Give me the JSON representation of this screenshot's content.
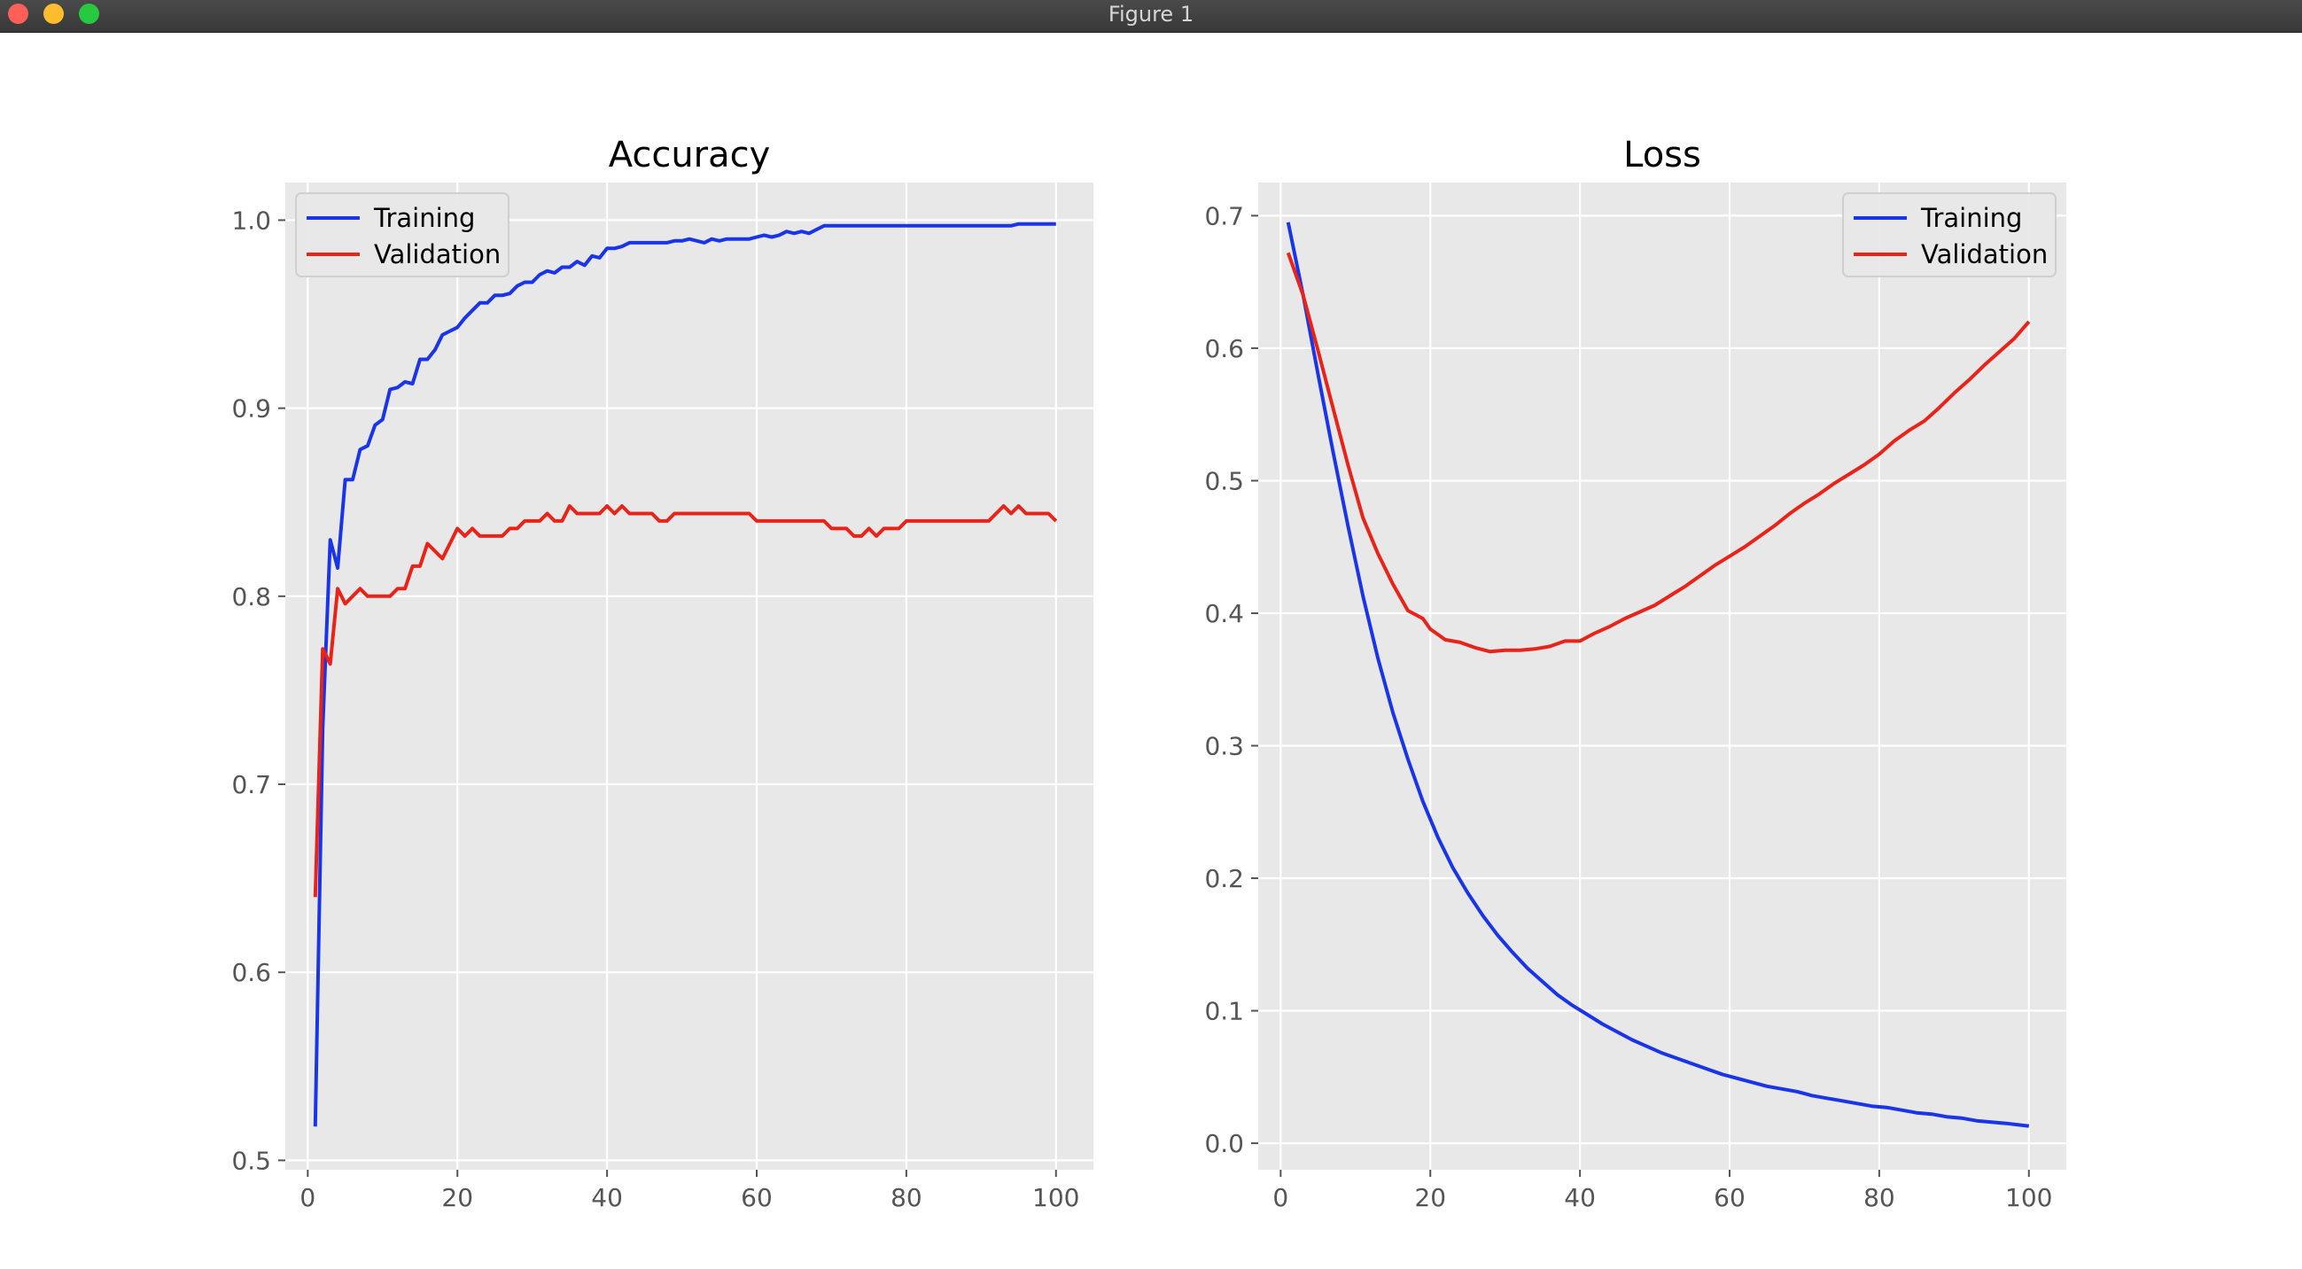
{
  "window": {
    "title": "Figure 1",
    "buttons": [
      "close",
      "minimize",
      "maximize"
    ]
  },
  "style": {
    "axes_background": "#e8e8e8",
    "grid_color": "#ffffff",
    "training_color": "#1a35e8",
    "validation_color": "#e8231a"
  },
  "chart_data": [
    {
      "type": "line",
      "title": "Accuracy",
      "xlabel": "",
      "ylabel": "",
      "xlim": [
        -3,
        105
      ],
      "ylim": [
        0.495,
        1.02
      ],
      "xticks": [
        0,
        20,
        40,
        60,
        80,
        100
      ],
      "yticks": [
        0.5,
        0.6,
        0.7,
        0.8,
        0.9,
        1.0
      ],
      "grid": true,
      "legend": "upper left",
      "series": [
        {
          "name": "Training",
          "color": "#1a35e8",
          "x": [
            1,
            2,
            3,
            4,
            5,
            6,
            7,
            8,
            9,
            10,
            11,
            12,
            13,
            14,
            15,
            16,
            17,
            18,
            19,
            20,
            21,
            22,
            23,
            24,
            25,
            26,
            27,
            28,
            29,
            30,
            31,
            32,
            33,
            34,
            35,
            36,
            37,
            38,
            39,
            40,
            41,
            42,
            43,
            44,
            45,
            46,
            47,
            48,
            49,
            50,
            51,
            52,
            53,
            54,
            55,
            56,
            57,
            58,
            59,
            60,
            61,
            62,
            63,
            64,
            65,
            66,
            67,
            68,
            69,
            70,
            72,
            75,
            80,
            85,
            90,
            94,
            95,
            100
          ],
          "y": [
            0.518,
            0.73,
            0.83,
            0.815,
            0.862,
            0.862,
            0.878,
            0.88,
            0.891,
            0.894,
            0.91,
            0.911,
            0.914,
            0.913,
            0.926,
            0.926,
            0.931,
            0.939,
            0.941,
            0.943,
            0.948,
            0.952,
            0.956,
            0.956,
            0.96,
            0.96,
            0.961,
            0.965,
            0.967,
            0.967,
            0.971,
            0.973,
            0.972,
            0.975,
            0.975,
            0.978,
            0.976,
            0.981,
            0.98,
            0.985,
            0.985,
            0.986,
            0.988,
            0.988,
            0.988,
            0.988,
            0.988,
            0.988,
            0.989,
            0.989,
            0.99,
            0.989,
            0.988,
            0.99,
            0.989,
            0.99,
            0.99,
            0.99,
            0.99,
            0.991,
            0.992,
            0.991,
            0.992,
            0.994,
            0.993,
            0.994,
            0.993,
            0.995,
            0.997,
            0.997,
            0.997,
            0.997,
            0.997,
            0.997,
            0.997,
            0.997,
            0.998,
            0.998
          ]
        },
        {
          "name": "Validation",
          "color": "#e8231a",
          "x": [
            1,
            2,
            3,
            4,
            5,
            6,
            7,
            8,
            9,
            10,
            11,
            12,
            13,
            14,
            15,
            16,
            17,
            18,
            19,
            20,
            21,
            22,
            23,
            24,
            25,
            26,
            27,
            28,
            29,
            30,
            31,
            32,
            33,
            34,
            35,
            36,
            37,
            38,
            39,
            40,
            41,
            42,
            43,
            44,
            45,
            46,
            47,
            48,
            49,
            50,
            51,
            55,
            59,
            60,
            65,
            69,
            70,
            71,
            72,
            73,
            74,
            75,
            76,
            77,
            78,
            79,
            80,
            85,
            90,
            91,
            92,
            93,
            94,
            95,
            96,
            97,
            98,
            99,
            100
          ],
          "y": [
            0.64,
            0.772,
            0.764,
            0.804,
            0.796,
            0.8,
            0.804,
            0.8,
            0.8,
            0.8,
            0.8,
            0.804,
            0.804,
            0.816,
            0.816,
            0.828,
            0.824,
            0.82,
            0.828,
            0.836,
            0.832,
            0.836,
            0.832,
            0.832,
            0.832,
            0.832,
            0.836,
            0.836,
            0.84,
            0.84,
            0.84,
            0.844,
            0.84,
            0.84,
            0.848,
            0.844,
            0.844,
            0.844,
            0.844,
            0.848,
            0.844,
            0.848,
            0.844,
            0.844,
            0.844,
            0.844,
            0.84,
            0.84,
            0.844,
            0.844,
            0.844,
            0.844,
            0.844,
            0.84,
            0.84,
            0.84,
            0.836,
            0.836,
            0.836,
            0.832,
            0.832,
            0.836,
            0.832,
            0.836,
            0.836,
            0.836,
            0.84,
            0.84,
            0.84,
            0.84,
            0.844,
            0.848,
            0.844,
            0.848,
            0.844,
            0.844,
            0.844,
            0.844,
            0.84
          ]
        }
      ]
    },
    {
      "type": "line",
      "title": "Loss",
      "xlabel": "",
      "ylabel": "",
      "xlim": [
        -3,
        105
      ],
      "ylim": [
        -0.02,
        0.725
      ],
      "xticks": [
        0,
        20,
        40,
        60,
        80,
        100
      ],
      "yticks": [
        0.0,
        0.1,
        0.2,
        0.3,
        0.4,
        0.5,
        0.6,
        0.7
      ],
      "grid": true,
      "legend": "upper right",
      "series": [
        {
          "name": "Training",
          "color": "#1a35e8",
          "x": [
            1,
            3,
            5,
            7,
            9,
            11,
            13,
            15,
            17,
            19,
            21,
            23,
            25,
            27,
            29,
            31,
            33,
            35,
            37,
            39,
            41,
            43,
            45,
            47,
            49,
            51,
            53,
            55,
            57,
            59,
            61,
            63,
            65,
            67,
            69,
            71,
            73,
            75,
            77,
            79,
            81,
            83,
            85,
            87,
            89,
            91,
            93,
            95,
            97,
            100
          ],
          "y": [
            0.695,
            0.64,
            0.58,
            0.522,
            0.466,
            0.413,
            0.366,
            0.325,
            0.29,
            0.258,
            0.231,
            0.208,
            0.189,
            0.172,
            0.157,
            0.144,
            0.132,
            0.122,
            0.112,
            0.104,
            0.097,
            0.09,
            0.084,
            0.078,
            0.073,
            0.068,
            0.064,
            0.06,
            0.056,
            0.052,
            0.049,
            0.046,
            0.043,
            0.041,
            0.039,
            0.036,
            0.034,
            0.032,
            0.03,
            0.028,
            0.027,
            0.025,
            0.023,
            0.022,
            0.02,
            0.019,
            0.017,
            0.016,
            0.015,
            0.013
          ]
        },
        {
          "name": "Validation",
          "color": "#e8231a",
          "x": [
            1,
            3,
            5,
            7,
            9,
            11,
            13,
            15,
            17,
            19,
            20,
            22,
            24,
            26,
            28,
            30,
            32,
            34,
            36,
            38,
            40,
            42,
            44,
            46,
            48,
            50,
            52,
            54,
            56,
            58,
            60,
            62,
            64,
            66,
            68,
            70,
            72,
            74,
            76,
            78,
            80,
            82,
            84,
            86,
            88,
            90,
            92,
            94,
            96,
            98,
            100
          ],
          "y": [
            0.672,
            0.64,
            0.598,
            0.555,
            0.512,
            0.472,
            0.445,
            0.422,
            0.402,
            0.396,
            0.388,
            0.38,
            0.378,
            0.374,
            0.371,
            0.372,
            0.372,
            0.373,
            0.375,
            0.379,
            0.379,
            0.385,
            0.39,
            0.396,
            0.401,
            0.406,
            0.413,
            0.42,
            0.428,
            0.436,
            0.443,
            0.45,
            0.458,
            0.466,
            0.475,
            0.483,
            0.49,
            0.498,
            0.505,
            0.512,
            0.52,
            0.53,
            0.538,
            0.545,
            0.555,
            0.566,
            0.576,
            0.587,
            0.597,
            0.607,
            0.62
          ]
        }
      ]
    }
  ]
}
